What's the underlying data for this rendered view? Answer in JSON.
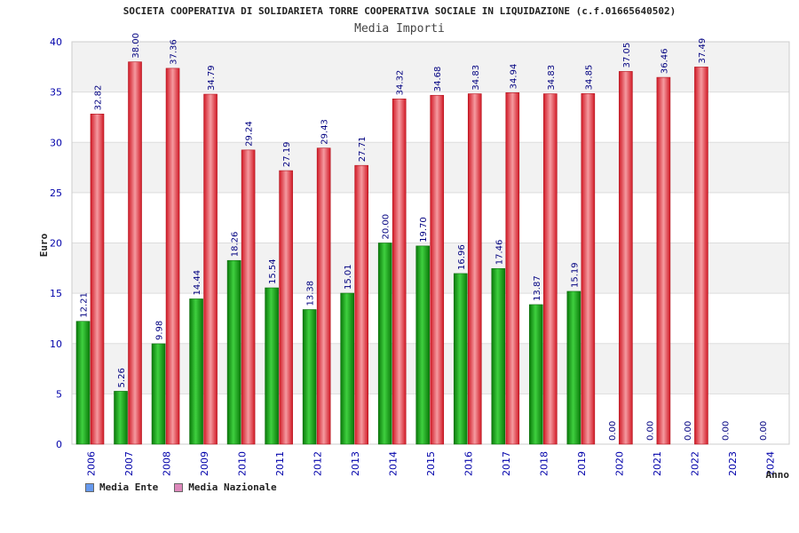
{
  "header": {
    "title": "SOCIETA COOPERATIVA DI SOLIDARIETA TORRE COOPERATIVA SOCIALE IN LIQUIDAZIONE (c.f.01665640502)",
    "subtitle": "Media Importi"
  },
  "legend": {
    "items": [
      {
        "label": "Media Ente",
        "color": "#6699ee"
      },
      {
        "label": "Media Nazionale",
        "color": "#dd88bb"
      }
    ]
  },
  "colors": {
    "ente_bar": "#1faa1f",
    "nazionale_bar": "#e8323c",
    "label_text": "#000080",
    "axis_text": "#0000aa",
    "band": "#f2f2f2"
  },
  "chart_data": {
    "type": "bar",
    "title": "Media Importi",
    "xlabel": "Anno",
    "ylabel": "Euro",
    "ylim": [
      0,
      40
    ],
    "yticks": [
      0,
      5,
      10,
      15,
      20,
      25,
      30,
      35,
      40
    ],
    "categories": [
      "2006",
      "2007",
      "2008",
      "2009",
      "2010",
      "2011",
      "2012",
      "2013",
      "2014",
      "2015",
      "2016",
      "2017",
      "2018",
      "2019",
      "2020",
      "2021",
      "2022",
      "2023",
      "2024"
    ],
    "series": [
      {
        "name": "Media Ente",
        "values": [
          12.21,
          5.26,
          9.98,
          14.44,
          18.26,
          15.54,
          13.38,
          15.01,
          20.0,
          19.7,
          16.96,
          17.46,
          13.87,
          15.19,
          0.0,
          0.0,
          0.0,
          0.0,
          0.0
        ],
        "labels": [
          "12.21",
          "5.26",
          "9.98",
          "14.44",
          "18.26",
          "15.54",
          "13.38",
          "15.01",
          "20.00",
          "19.70",
          "16.96",
          "17.46",
          "13.87",
          "15.19",
          "0.00",
          "0.00",
          "0.00",
          "0.00",
          "0.00"
        ]
      },
      {
        "name": "Media Nazionale",
        "values": [
          32.82,
          38.0,
          37.36,
          34.79,
          29.24,
          27.19,
          29.43,
          27.71,
          34.32,
          34.68,
          34.83,
          34.94,
          34.83,
          34.85,
          37.05,
          36.46,
          37.49,
          null,
          null
        ],
        "labels": [
          "32.82",
          "38.00",
          "37.36",
          "34.79",
          "29.24",
          "27.19",
          "29.43",
          "27.71",
          "34.32",
          "34.68",
          "34.83",
          "34.94",
          "34.83",
          "34.85",
          "37.05",
          "36.46",
          "37.49",
          null,
          null
        ]
      }
    ],
    "grid": true,
    "legend_position": "bottom-left"
  }
}
